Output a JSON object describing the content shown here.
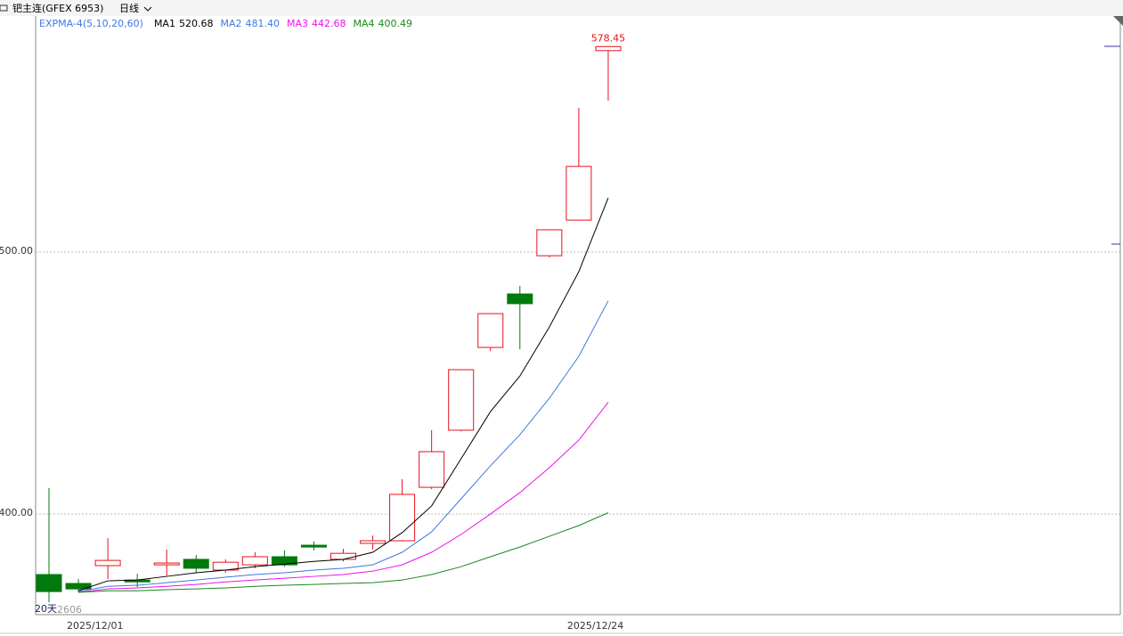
{
  "header": {
    "instrument": "钯主连(GFEX 6953)",
    "period": "日线"
  },
  "chart_data": {
    "type": "candlestick",
    "indicator": "EXPMA-4(5,10,20,60)",
    "categories": [
      null,
      "2025/12/01",
      null,
      null,
      null,
      null,
      null,
      null,
      null,
      null,
      null,
      null,
      null,
      null,
      null,
      null,
      null,
      null,
      "2025/12/24",
      null
    ],
    "open": [
      376.9,
      373.5,
      380.3,
      374.8,
      380.6,
      382.7,
      378.6,
      380.6,
      383.7,
      388.1,
      382.7,
      388.8,
      389.8,
      410.2,
      432.0,
      463.6,
      484.0,
      498.6,
      512.2,
      576.9
    ],
    "high": [
      409.9,
      375.2,
      390.8,
      377.2,
      386.4,
      384.4,
      382.7,
      385.4,
      386.1,
      389.5,
      386.7,
      391.8,
      413.3,
      432.0,
      455.1,
      476.5,
      487.1,
      508.5,
      555.1,
      578.45
    ],
    "low": [
      366.3,
      370.1,
      375.2,
      372.1,
      376.5,
      377.6,
      377.6,
      379.3,
      379.9,
      386.1,
      381.9,
      386.4,
      389.5,
      409.5,
      431.6,
      462.2,
      462.9,
      498.0,
      512.2,
      557.8
    ],
    "close": [
      370.4,
      371.4,
      382.3,
      374.1,
      381.3,
      379.3,
      381.6,
      383.7,
      380.6,
      387.4,
      385.0,
      389.8,
      407.5,
      423.8,
      455.1,
      476.5,
      480.3,
      508.5,
      532.7,
      578.45
    ],
    "up_color": "#e8101a",
    "down_color": "#007a0c",
    "high_label": "578.45",
    "series": [
      {
        "name": "MA1",
        "color": "#000000",
        "last_label": "520.68",
        "values": [
          null,
          370.7,
          374.5,
          374.8,
          376.2,
          377.6,
          378.6,
          379.9,
          380.9,
          381.9,
          382.7,
          385.4,
          392.9,
          403.1,
          421.1,
          439.1,
          452.7,
          471.4,
          492.5,
          520.68
        ]
      },
      {
        "name": "MA2",
        "color": "#3f78e0",
        "last_label": "481.40",
        "values": [
          null,
          370.4,
          372.4,
          372.8,
          373.8,
          374.8,
          375.9,
          376.9,
          377.6,
          378.6,
          379.3,
          380.6,
          385.4,
          393.2,
          405.8,
          418.4,
          430.3,
          444.2,
          460.2,
          481.4
        ]
      },
      {
        "name": "MA3",
        "color": "#ee10ee",
        "last_label": "442.68",
        "values": [
          null,
          370.1,
          371.4,
          371.8,
          372.4,
          373.1,
          374.1,
          374.8,
          375.5,
          376.2,
          376.9,
          378.2,
          380.6,
          385.4,
          392.2,
          400.0,
          408.2,
          417.7,
          428.2,
          442.68
        ]
      },
      {
        "name": "MA4",
        "color": "#1a8a1a",
        "last_label": "400.49",
        "values": [
          null,
          370.1,
          370.7,
          370.7,
          371.1,
          371.4,
          371.8,
          372.4,
          372.8,
          373.1,
          373.5,
          373.8,
          374.8,
          376.9,
          379.9,
          383.7,
          387.4,
          391.5,
          395.6,
          400.49
        ]
      }
    ],
    "ylim": [
      361.6,
      590.1
    ],
    "yticks": [
      {
        "value": 400,
        "label": "400.00"
      },
      {
        "value": 500,
        "label": "500.00"
      }
    ],
    "grid": true,
    "corner_notes": [
      "20天",
      "2606"
    ]
  }
}
